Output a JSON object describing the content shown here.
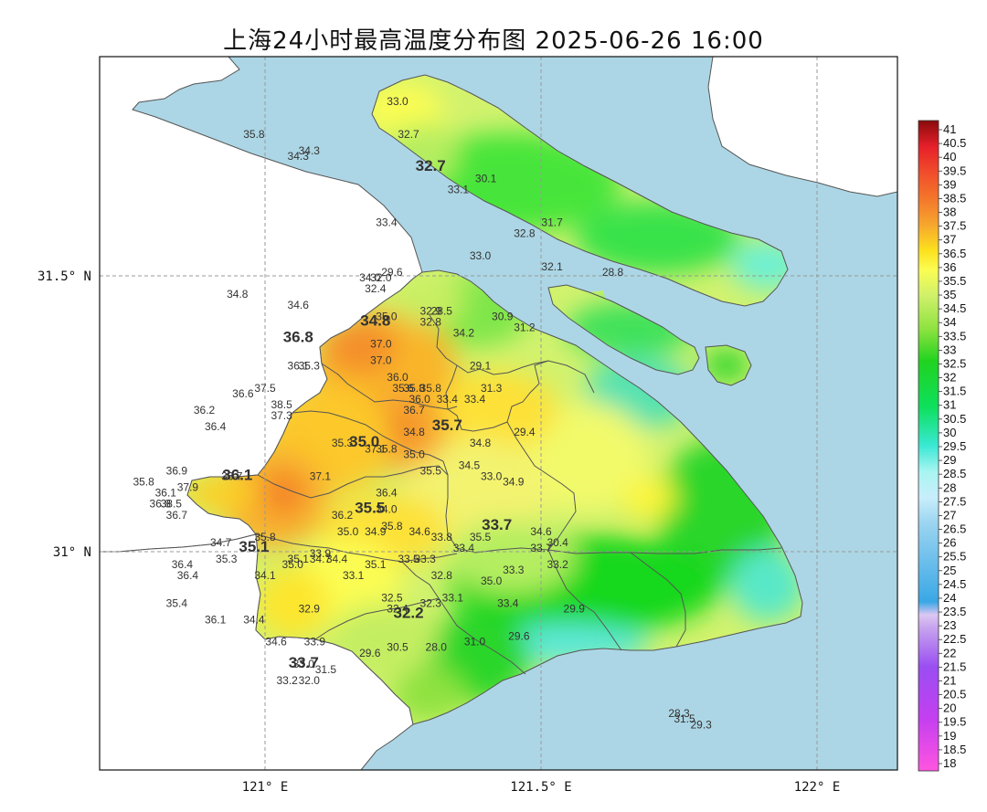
{
  "title": "上海24小时最高温度分布图 2025-06-26 16:00",
  "axes": {
    "x_ticks": [
      {
        "value": 121.0,
        "label": "121° E"
      },
      {
        "value": 121.5,
        "label": "121.5° E"
      },
      {
        "value": 122.0,
        "label": "122° E"
      }
    ],
    "y_ticks": [
      {
        "value": 31.5,
        "label": "31.5° N"
      },
      {
        "value": 31.0,
        "label": "31° N"
      }
    ],
    "lon_range": [
      120.7,
      122.15
    ],
    "lat_range": [
      30.6,
      31.9
    ]
  },
  "colorbar": {
    "min": 18,
    "max": 41,
    "step": 0.5,
    "labels": [
      "41",
      "40.5",
      "40",
      "39.5",
      "39",
      "38.5",
      "38",
      "37.5",
      "37",
      "36.5",
      "36",
      "35.5",
      "35",
      "34.5",
      "34",
      "33.5",
      "33",
      "32.5",
      "32",
      "31.5",
      "31",
      "30.5",
      "30",
      "29.5",
      "29",
      "28.5",
      "28",
      "27.5",
      "27",
      "26.5",
      "26",
      "25.5",
      "25",
      "24.5",
      "24",
      "23.5",
      "23",
      "22.5",
      "22",
      "21.5",
      "21",
      "20.5",
      "20",
      "19.5",
      "19",
      "18.5",
      "18"
    ]
  },
  "colors": {
    "sea": "#acd6e5",
    "land_outside": "#ffffff",
    "border": "#555555",
    "grid": "#999999"
  },
  "stations": [
    {
      "lon": 120.98,
      "lat": 31.75,
      "t": "35.8"
    },
    {
      "lon": 121.06,
      "lat": 31.71,
      "t": "34.3"
    },
    {
      "lon": 121.08,
      "lat": 31.72,
      "t": "34.3"
    },
    {
      "lon": 121.24,
      "lat": 31.81,
      "t": "33.0"
    },
    {
      "lon": 121.26,
      "lat": 31.75,
      "t": "32.7"
    },
    {
      "lon": 121.22,
      "lat": 31.59,
      "t": "33.4"
    },
    {
      "lon": 121.35,
      "lat": 31.65,
      "t": "33.1"
    },
    {
      "lon": 121.4,
      "lat": 31.67,
      "t": "30.1"
    },
    {
      "lon": 121.52,
      "lat": 31.59,
      "t": "31.7"
    },
    {
      "lon": 121.47,
      "lat": 31.57,
      "t": "32.8"
    },
    {
      "lon": 121.39,
      "lat": 31.53,
      "t": "33.0"
    },
    {
      "lon": 121.52,
      "lat": 31.51,
      "t": "32.1"
    },
    {
      "lon": 121.63,
      "lat": 31.5,
      "t": "28.8"
    },
    {
      "lon": 121.23,
      "lat": 31.5,
      "t": "29.6"
    },
    {
      "lon": 121.19,
      "lat": 31.49,
      "t": "34.0"
    },
    {
      "lon": 121.21,
      "lat": 31.49,
      "t": "32.0"
    },
    {
      "lon": 120.95,
      "lat": 31.46,
      "t": "34.8"
    },
    {
      "lon": 121.2,
      "lat": 31.47,
      "t": "32.4"
    },
    {
      "lon": 121.06,
      "lat": 31.44,
      "t": "34.6"
    },
    {
      "lon": 121.22,
      "lat": 31.42,
      "t": "35.0"
    },
    {
      "lon": 121.3,
      "lat": 31.43,
      "t": "32.9"
    },
    {
      "lon": 121.32,
      "lat": 31.43,
      "t": "28.5"
    },
    {
      "lon": 121.3,
      "lat": 31.41,
      "t": "32.8"
    },
    {
      "lon": 121.43,
      "lat": 31.42,
      "t": "30.9"
    },
    {
      "lon": 121.47,
      "lat": 31.4,
      "t": "31.2"
    },
    {
      "lon": 121.36,
      "lat": 31.39,
      "t": "34.2"
    },
    {
      "lon": 121.06,
      "lat": 31.33,
      "t": "36.1"
    },
    {
      "lon": 121.21,
      "lat": 31.37,
      "t": "37.0"
    },
    {
      "lon": 121.21,
      "lat": 31.34,
      "t": "37.0"
    },
    {
      "lon": 121.08,
      "lat": 31.33,
      "t": "35.3"
    },
    {
      "lon": 121.39,
      "lat": 31.33,
      "t": "29.1"
    },
    {
      "lon": 121.41,
      "lat": 31.29,
      "t": "31.3"
    },
    {
      "lon": 121.24,
      "lat": 31.31,
      "t": "36.0"
    },
    {
      "lon": 121.25,
      "lat": 31.29,
      "t": "35.6"
    },
    {
      "lon": 121.27,
      "lat": 31.29,
      "t": "35.8"
    },
    {
      "lon": 121.3,
      "lat": 31.29,
      "t": "35.8"
    },
    {
      "lon": 121.28,
      "lat": 31.27,
      "t": "36.0"
    },
    {
      "lon": 121.27,
      "lat": 31.25,
      "t": "36.7"
    },
    {
      "lon": 121.33,
      "lat": 31.27,
      "t": "33.4"
    },
    {
      "lon": 121.38,
      "lat": 31.27,
      "t": "33.4"
    },
    {
      "lon": 120.96,
      "lat": 31.28,
      "t": "36.6"
    },
    {
      "lon": 121.0,
      "lat": 31.29,
      "t": "37.5"
    },
    {
      "lon": 121.03,
      "lat": 31.26,
      "t": "38.5"
    },
    {
      "lon": 121.03,
      "lat": 31.24,
      "t": "37.3"
    },
    {
      "lon": 120.89,
      "lat": 31.25,
      "t": "36.2"
    },
    {
      "lon": 120.91,
      "lat": 31.22,
      "t": "36.4"
    },
    {
      "lon": 121.14,
      "lat": 31.19,
      "t": "35.3"
    },
    {
      "lon": 121.2,
      "lat": 31.18,
      "t": "37.1"
    },
    {
      "lon": 121.22,
      "lat": 31.18,
      "t": "35.8"
    },
    {
      "lon": 121.27,
      "lat": 31.21,
      "t": "34.8"
    },
    {
      "lon": 121.27,
      "lat": 31.17,
      "t": "35.0"
    },
    {
      "lon": 121.39,
      "lat": 31.19,
      "t": "34.8"
    },
    {
      "lon": 121.47,
      "lat": 31.21,
      "t": "29.4"
    },
    {
      "lon": 121.41,
      "lat": 31.13,
      "t": "33.0"
    },
    {
      "lon": 121.37,
      "lat": 31.15,
      "t": "34.5"
    },
    {
      "lon": 121.3,
      "lat": 31.14,
      "t": "35.5"
    },
    {
      "lon": 121.45,
      "lat": 31.12,
      "t": "34.9"
    },
    {
      "lon": 121.1,
      "lat": 31.13,
      "t": "37.1"
    },
    {
      "lon": 121.22,
      "lat": 31.1,
      "t": "36.4"
    },
    {
      "lon": 121.22,
      "lat": 31.07,
      "t": "34.0"
    },
    {
      "lon": 120.78,
      "lat": 31.12,
      "t": "35.8"
    },
    {
      "lon": 120.84,
      "lat": 31.14,
      "t": "36.9"
    },
    {
      "lon": 120.86,
      "lat": 31.11,
      "t": "37.9"
    },
    {
      "lon": 120.94,
      "lat": 31.13,
      "t": "36.7"
    },
    {
      "lon": 120.82,
      "lat": 31.1,
      "t": "36.1"
    },
    {
      "lon": 120.81,
      "lat": 31.08,
      "t": "36.8"
    },
    {
      "lon": 120.83,
      "lat": 31.08,
      "t": "38.5"
    },
    {
      "lon": 120.84,
      "lat": 31.06,
      "t": "36.7"
    },
    {
      "lon": 121.14,
      "lat": 31.06,
      "t": "36.2"
    },
    {
      "lon": 121.15,
      "lat": 31.03,
      "t": "35.0"
    },
    {
      "lon": 121.23,
      "lat": 31.04,
      "t": "35.8"
    },
    {
      "lon": 121.2,
      "lat": 31.03,
      "t": "34.9"
    },
    {
      "lon": 121.28,
      "lat": 31.03,
      "t": "34.6"
    },
    {
      "lon": 121.32,
      "lat": 31.02,
      "t": "33.8"
    },
    {
      "lon": 121.39,
      "lat": 31.02,
      "t": "35.5"
    },
    {
      "lon": 121.5,
      "lat": 31.03,
      "t": "34.6"
    },
    {
      "lon": 121.53,
      "lat": 31.01,
      "t": "30.4"
    },
    {
      "lon": 121.5,
      "lat": 31.0,
      "t": "33.7"
    },
    {
      "lon": 121.36,
      "lat": 31.0,
      "t": "33.4"
    },
    {
      "lon": 121.0,
      "lat": 31.02,
      "t": "35.8"
    },
    {
      "lon": 120.92,
      "lat": 31.01,
      "t": "34.7"
    },
    {
      "lon": 120.93,
      "lat": 30.98,
      "t": "35.3"
    },
    {
      "lon": 121.06,
      "lat": 30.98,
      "t": "35.1"
    },
    {
      "lon": 121.05,
      "lat": 30.97,
      "t": "35.0"
    },
    {
      "lon": 121.1,
      "lat": 30.99,
      "t": "33.9"
    },
    {
      "lon": 121.13,
      "lat": 30.98,
      "t": "34.4"
    },
    {
      "lon": 121.1,
      "lat": 30.98,
      "t": "34.7"
    },
    {
      "lon": 121.2,
      "lat": 30.97,
      "t": "35.1"
    },
    {
      "lon": 121.26,
      "lat": 30.98,
      "t": "33.5"
    },
    {
      "lon": 121.29,
      "lat": 30.98,
      "t": "33.3"
    },
    {
      "lon": 121.16,
      "lat": 30.95,
      "t": "33.1"
    },
    {
      "lon": 121.32,
      "lat": 30.95,
      "t": "32.8"
    },
    {
      "lon": 121.41,
      "lat": 30.94,
      "t": "35.0"
    },
    {
      "lon": 121.45,
      "lat": 30.96,
      "t": "33.3"
    },
    {
      "lon": 121.53,
      "lat": 30.97,
      "t": "33.2"
    },
    {
      "lon": 120.85,
      "lat": 30.97,
      "t": "36.4"
    },
    {
      "lon": 120.86,
      "lat": 30.95,
      "t": "36.4"
    },
    {
      "lon": 121.0,
      "lat": 30.95,
      "t": "34.1"
    },
    {
      "lon": 120.84,
      "lat": 30.9,
      "t": "35.4"
    },
    {
      "lon": 121.23,
      "lat": 30.91,
      "t": "32.5"
    },
    {
      "lon": 121.24,
      "lat": 30.89,
      "t": "32.4"
    },
    {
      "lon": 121.3,
      "lat": 30.9,
      "t": "32.3"
    },
    {
      "lon": 121.34,
      "lat": 30.91,
      "t": "33.1"
    },
    {
      "lon": 121.44,
      "lat": 30.9,
      "t": "33.4"
    },
    {
      "lon": 121.56,
      "lat": 30.89,
      "t": "29.9"
    },
    {
      "lon": 121.08,
      "lat": 30.89,
      "t": "32.9"
    },
    {
      "lon": 120.91,
      "lat": 30.87,
      "t": "36.1"
    },
    {
      "lon": 120.98,
      "lat": 30.87,
      "t": "34.4"
    },
    {
      "lon": 121.02,
      "lat": 30.83,
      "t": "34.6"
    },
    {
      "lon": 121.09,
      "lat": 30.83,
      "t": "33.9"
    },
    {
      "lon": 121.19,
      "lat": 30.81,
      "t": "29.6"
    },
    {
      "lon": 121.24,
      "lat": 30.82,
      "t": "30.5"
    },
    {
      "lon": 121.31,
      "lat": 30.82,
      "t": "28.0"
    },
    {
      "lon": 121.38,
      "lat": 30.83,
      "t": "31.0"
    },
    {
      "lon": 121.46,
      "lat": 30.84,
      "t": "29.6"
    },
    {
      "lon": 121.07,
      "lat": 30.79,
      "t": "33.0"
    },
    {
      "lon": 121.11,
      "lat": 30.78,
      "t": "31.5"
    },
    {
      "lon": 121.04,
      "lat": 30.76,
      "t": "33.2"
    },
    {
      "lon": 121.08,
      "lat": 30.76,
      "t": "32.0"
    },
    {
      "lon": 121.75,
      "lat": 30.7,
      "t": "28.3"
    },
    {
      "lon": 121.76,
      "lat": 30.69,
      "t": "31.5"
    },
    {
      "lon": 121.79,
      "lat": 30.68,
      "t": "29.3"
    }
  ],
  "big_labels": [
    {
      "lon": 121.3,
      "lat": 31.69,
      "t": "32.7"
    },
    {
      "lon": 121.06,
      "lat": 31.38,
      "t": "36.8"
    },
    {
      "lon": 121.2,
      "lat": 31.41,
      "t": "34.8"
    },
    {
      "lon": 121.33,
      "lat": 31.22,
      "t": "35.7"
    },
    {
      "lon": 121.18,
      "lat": 31.19,
      "t": "35.0"
    },
    {
      "lon": 120.95,
      "lat": 31.13,
      "t": "36.1"
    },
    {
      "lon": 121.19,
      "lat": 31.07,
      "t": "35.5"
    },
    {
      "lon": 121.42,
      "lat": 31.04,
      "t": "33.7"
    },
    {
      "lon": 120.98,
      "lat": 31.0,
      "t": "35.1"
    },
    {
      "lon": 121.26,
      "lat": 30.88,
      "t": "32.2"
    },
    {
      "lon": 121.07,
      "lat": 30.79,
      "t": "33.7"
    }
  ]
}
